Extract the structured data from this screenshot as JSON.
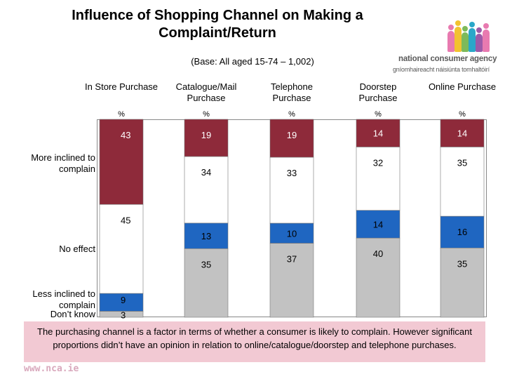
{
  "title": "Influence of Shopping Channel on Making a Complaint/Return",
  "subtitle": "(Base: All aged 15-74 – 1,002)",
  "logo": {
    "name": "national consumer agency",
    "irish": "gníomhaireacht náisiúnta tomhaltóirí",
    "figure_colors": [
      "#e87ab0",
      "#f2c230",
      "#7dba5a",
      "#2aa7c9",
      "#9c5aa8",
      "#e87ab0"
    ]
  },
  "colors": {
    "more_inclined": "#8e2a3a",
    "no_effect": "#ffffff",
    "less_inclined": "#1f66c1",
    "dont_know": "#c2c2c2",
    "footer_bg": "#f2c9d3",
    "label_on_dark": "#ffffff",
    "label_on_light": "#000000"
  },
  "row_labels": {
    "more_inclined": "More inclined to complain",
    "no_effect": "No effect",
    "less_inclined": "Less inclined to complain",
    "dont_know": "Don’t know"
  },
  "chart_data": {
    "type": "bar",
    "stacked": true,
    "orientation": "vertical-100%",
    "categories": [
      "In Store Purchase",
      "Catalogue/Mail Purchase",
      "Telephone Purchase",
      "Doorstep Purchase",
      "Online Purchase"
    ],
    "unit_label": "%",
    "series": [
      {
        "name": "More inclined to complain",
        "key": "more_inclined",
        "values": [
          43,
          19,
          19,
          14,
          14
        ]
      },
      {
        "name": "No effect",
        "key": "no_effect",
        "values": [
          45,
          34,
          33,
          32,
          35
        ]
      },
      {
        "name": "Less inclined to complain",
        "key": "less_inclined",
        "values": [
          9,
          13,
          10,
          14,
          16
        ]
      },
      {
        "name": "Don’t know",
        "key": "dont_know",
        "values": [
          3,
          35,
          37,
          40,
          35
        ]
      }
    ],
    "ylim": [
      0,
      100
    ]
  },
  "footer": "The purchasing channel is a factor in terms of whether a consumer is likely to complain. However significant proportions didn’t have an opinion in relation to online/catalogue/doorstep and telephone purchases.",
  "url": "www.nca.ie"
}
